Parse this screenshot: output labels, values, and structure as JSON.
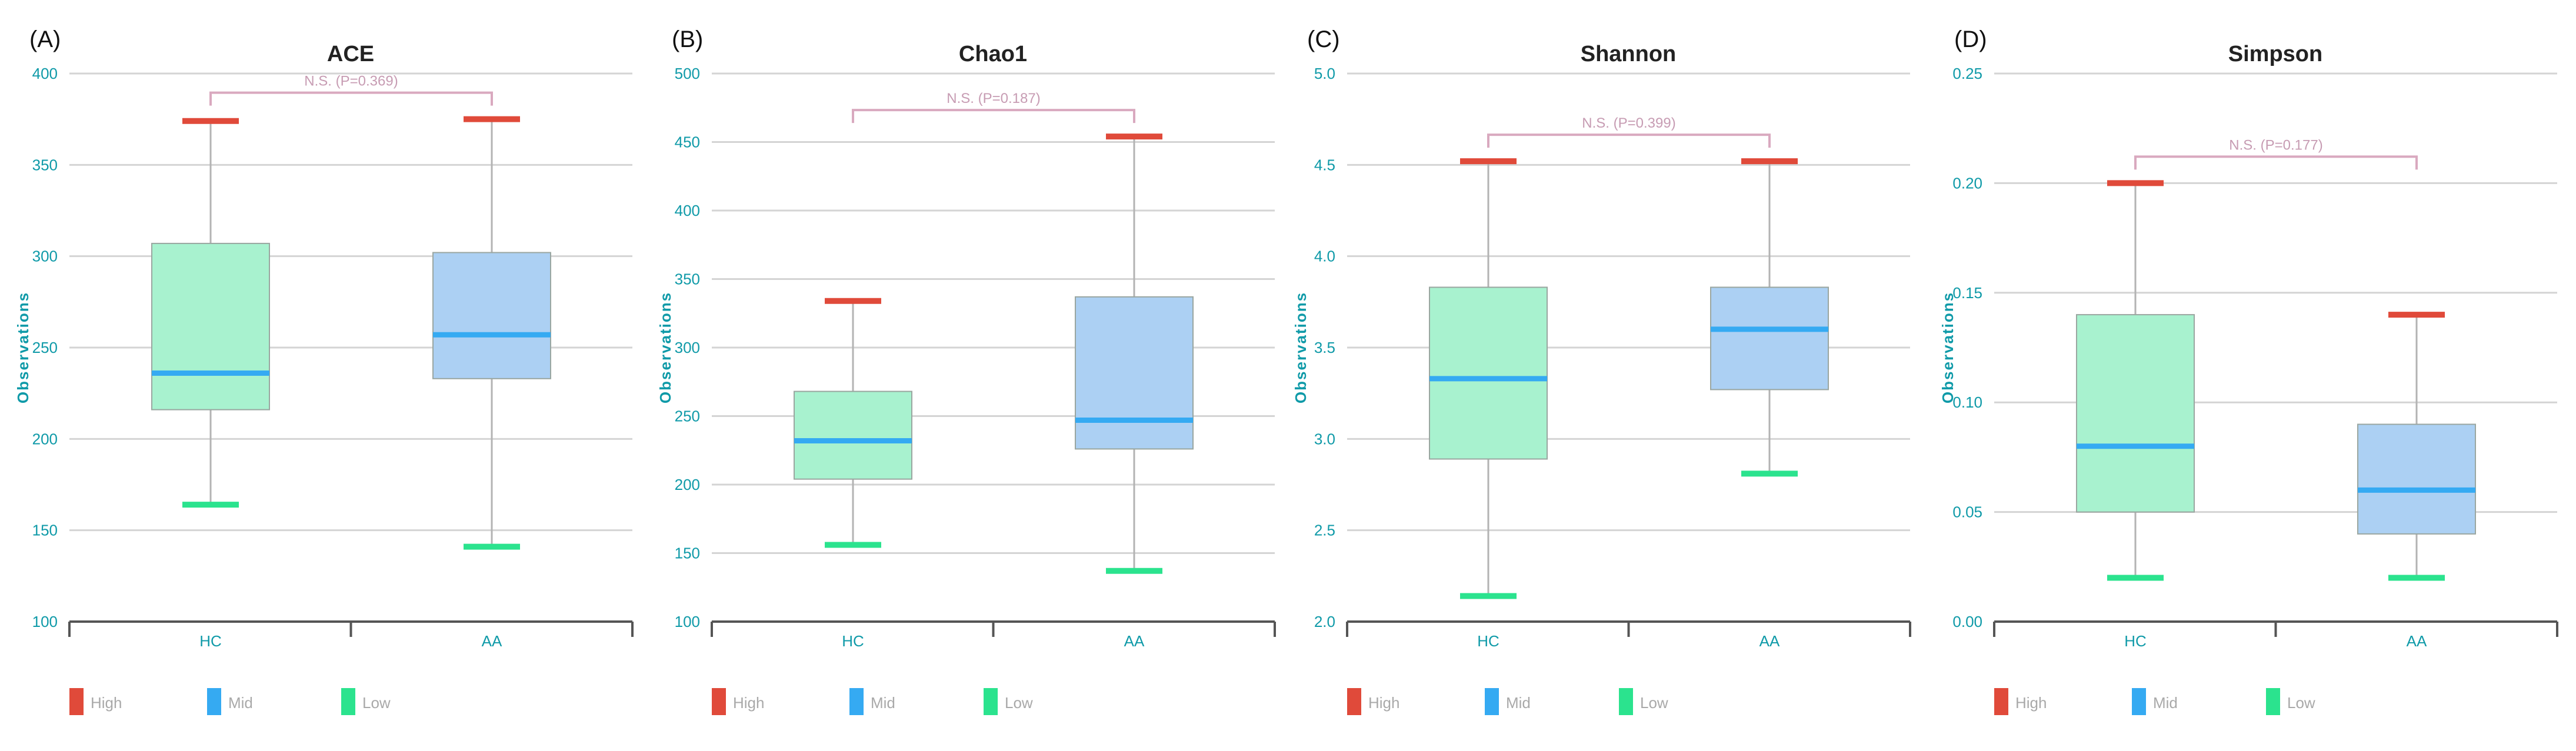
{
  "colors": {
    "high": "#e04a3a",
    "mid": "#35aaf2",
    "low": "#2be38e",
    "box_hc": "#a8f2cf",
    "box_aa": "#acd0f3",
    "axis_text": "#0f9aa8",
    "grid": "#d4d4d4",
    "whisker": "#b3b3b3",
    "bracket": "#d9a9bf",
    "sig_text": "#c79cb3",
    "axis_line": "#555555",
    "legend_text": "#a9a9a9"
  },
  "legend": [
    {
      "key": "high",
      "label": "High"
    },
    {
      "key": "mid",
      "label": "Mid"
    },
    {
      "key": "low",
      "label": "Low"
    }
  ],
  "chart_data": [
    {
      "panel": "(A)",
      "type": "box",
      "title": "ACE",
      "ylabel": "Observations",
      "xlabel": "",
      "ylim": [
        100,
        400
      ],
      "yticks": [
        "100",
        "150",
        "200",
        "250",
        "300",
        "350",
        "400"
      ],
      "categories": [
        "HC",
        "AA"
      ],
      "boxes": [
        {
          "name": "HC",
          "max": 374,
          "q3": 307,
          "median": 236,
          "q1": 216,
          "min": 164
        },
        {
          "name": "AA",
          "max": 375,
          "q3": 302,
          "median": 257,
          "q1": 233,
          "min": 141
        }
      ],
      "significance": "N.S. (P=0.369)"
    },
    {
      "panel": "(B)",
      "type": "box",
      "title": "Chao1",
      "ylabel": "Observations",
      "xlabel": "",
      "ylim": [
        100,
        500
      ],
      "yticks": [
        "100",
        "150",
        "200",
        "250",
        "300",
        "350",
        "400",
        "450",
        "500"
      ],
      "categories": [
        "HC",
        "AA"
      ],
      "boxes": [
        {
          "name": "HC",
          "max": 334,
          "q3": 268,
          "median": 232,
          "q1": 204,
          "min": 156
        },
        {
          "name": "AA",
          "max": 454,
          "q3": 337,
          "median": 247,
          "q1": 226,
          "min": 137
        }
      ],
      "significance": "N.S. (P=0.187)"
    },
    {
      "panel": "(C)",
      "type": "box",
      "title": "Shannon",
      "ylabel": "Observations",
      "xlabel": "",
      "ylim": [
        2.0,
        5.0
      ],
      "yticks": [
        "2.0",
        "2.5",
        "3.0",
        "3.5",
        "4.0",
        "4.5",
        "5.0"
      ],
      "categories": [
        "HC",
        "AA"
      ],
      "boxes": [
        {
          "name": "HC",
          "max": 4.52,
          "q3": 3.83,
          "median": 3.33,
          "q1": 2.89,
          "min": 2.14
        },
        {
          "name": "AA",
          "max": 4.52,
          "q3": 3.83,
          "median": 3.6,
          "q1": 3.27,
          "min": 2.81
        }
      ],
      "significance": "N.S. (P=0.399)"
    },
    {
      "panel": "(D)",
      "type": "box",
      "title": "Simpson",
      "ylabel": "Observations",
      "xlabel": "",
      "ylim": [
        0.0,
        0.25
      ],
      "yticks": [
        "0.00",
        "0.05",
        "0.10",
        "0.15",
        "0.20",
        "0.25"
      ],
      "categories": [
        "HC",
        "AA"
      ],
      "boxes": [
        {
          "name": "HC",
          "max": 0.2,
          "q3": 0.14,
          "median": 0.08,
          "q1": 0.05,
          "min": 0.02
        },
        {
          "name": "AA",
          "max": 0.14,
          "q3": 0.09,
          "median": 0.06,
          "q1": 0.04,
          "min": 0.02
        }
      ],
      "significance": "N.S. (P=0.177)"
    }
  ]
}
